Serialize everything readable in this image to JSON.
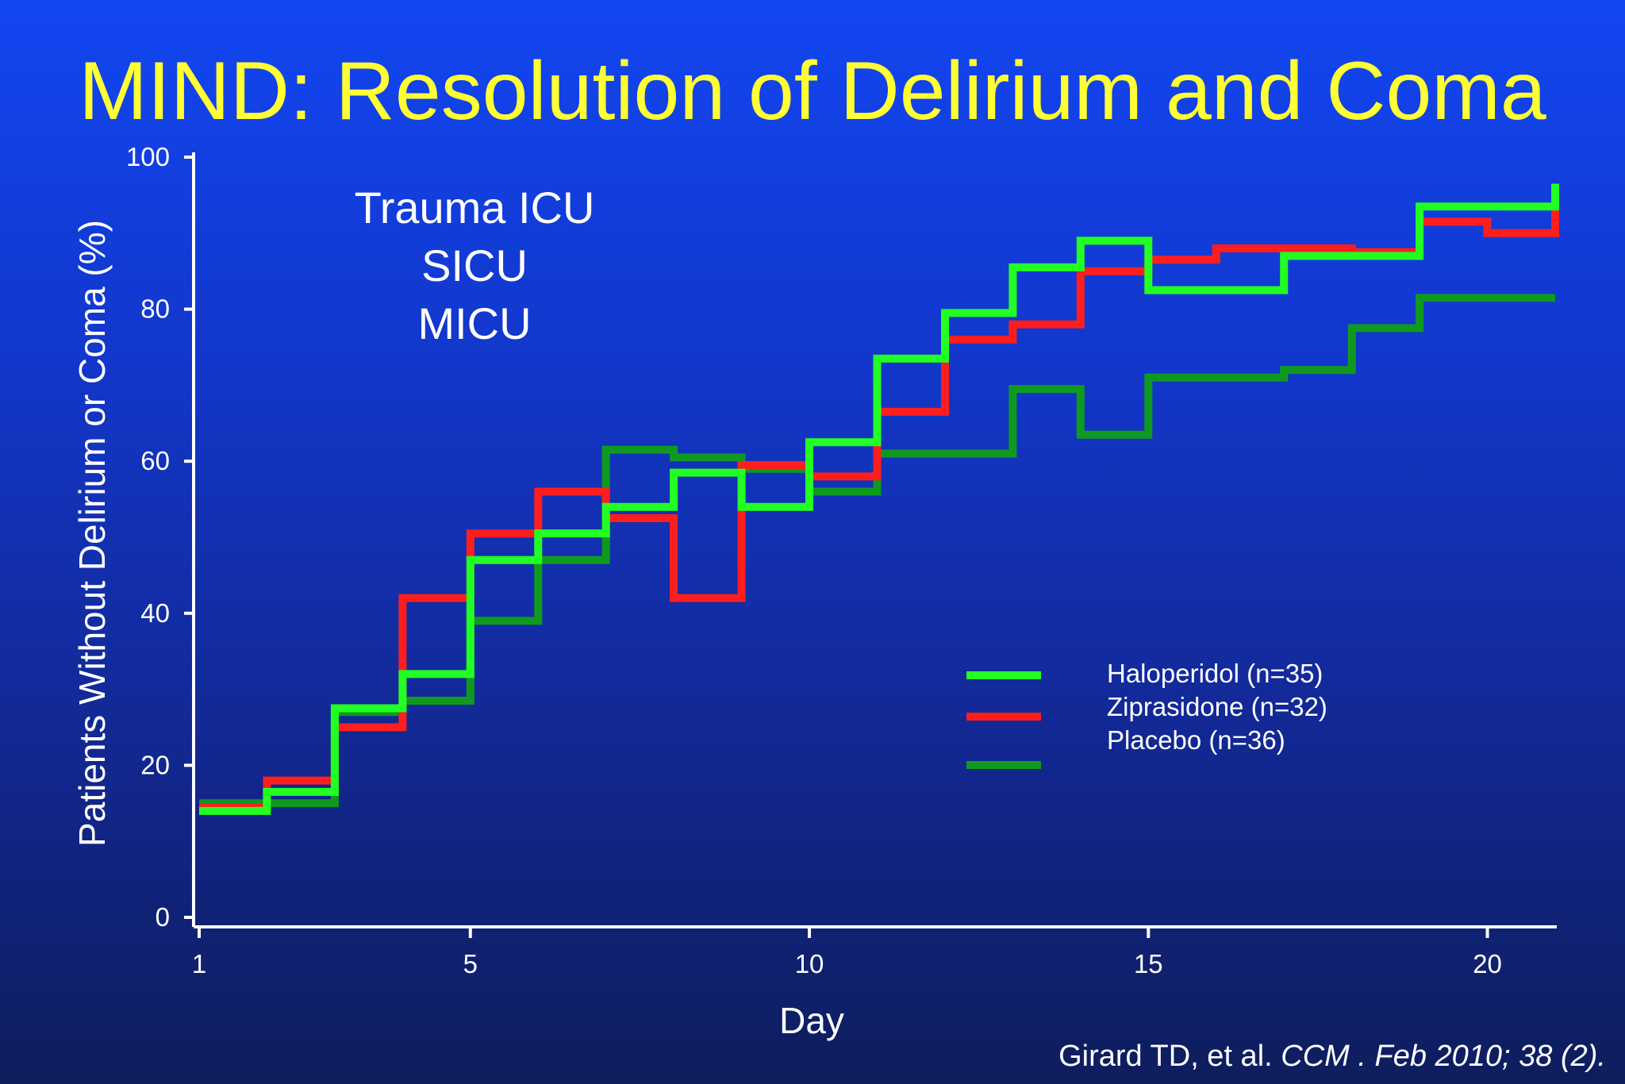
{
  "title": "MIND: Resolution of Delirium and Coma",
  "citation": {
    "authors": "Girard TD, et al. ",
    "journal": "CCM . Feb 2010; 38 (2)."
  },
  "annotation_lines": [
    "Trauma ICU",
    "SICU",
    "MICU"
  ],
  "colors": {
    "background_top": "#1246f2",
    "background_bottom": "#0e1d5c",
    "title": "#ffff33",
    "haloperidol": "#22ff22",
    "ziprasidone": "#ff1e1e",
    "placebo": "#0f9a1f"
  },
  "chart_data": {
    "type": "line",
    "step": true,
    "title": "MIND: Resolution of Delirium and Coma",
    "xlabel": "Day",
    "ylabel": "Patients Without Delirium or Coma (%)",
    "xlim": [
      1,
      21
    ],
    "ylim": [
      0,
      100
    ],
    "x_ticks": [
      1,
      5,
      10,
      15,
      20
    ],
    "y_ticks": [
      0,
      20,
      40,
      60,
      80,
      100
    ],
    "x_tick_labels": [
      "1",
      "5",
      "10",
      "15",
      "20"
    ],
    "y_tick_labels": [
      "0",
      "20",
      "40",
      "60",
      "80",
      "100"
    ],
    "grid": false,
    "legend_position": "center-right",
    "series": [
      {
        "name": "Haloperidol (n=35)",
        "color": "#22ff22",
        "points": [
          [
            1,
            14
          ],
          [
            2,
            14
          ],
          [
            2,
            16.5
          ],
          [
            3,
            16.5
          ],
          [
            3,
            27.5
          ],
          [
            4,
            27.5
          ],
          [
            4,
            32
          ],
          [
            5,
            32
          ],
          [
            5,
            47
          ],
          [
            6,
            47
          ],
          [
            6,
            50.5
          ],
          [
            7,
            50.5
          ],
          [
            7,
            54
          ],
          [
            8,
            54
          ],
          [
            8,
            58.5
          ],
          [
            9,
            58.5
          ],
          [
            9,
            54
          ],
          [
            10,
            54
          ],
          [
            10,
            62.5
          ],
          [
            11,
            62.5
          ],
          [
            11,
            73.5
          ],
          [
            12,
            73.5
          ],
          [
            12,
            79.5
          ],
          [
            13,
            79.5
          ],
          [
            13,
            85.5
          ],
          [
            14,
            85.5
          ],
          [
            14,
            89
          ],
          [
            15,
            89
          ],
          [
            15,
            82.5
          ],
          [
            17,
            82.5
          ],
          [
            17,
            87
          ],
          [
            19,
            87
          ],
          [
            19,
            93.5
          ],
          [
            21,
            93.5
          ],
          [
            21,
            96.5
          ]
        ]
      },
      {
        "name": "Ziprasidone (n=32)",
        "color": "#ff1e1e",
        "points": [
          [
            1,
            14.5
          ],
          [
            2,
            14.5
          ],
          [
            2,
            18
          ],
          [
            3,
            18
          ],
          [
            3,
            25
          ],
          [
            4,
            25
          ],
          [
            4,
            42
          ],
          [
            5,
            42
          ],
          [
            5,
            50.5
          ],
          [
            6,
            50.5
          ],
          [
            6,
            56
          ],
          [
            7,
            56
          ],
          [
            7,
            52.5
          ],
          [
            8,
            52.5
          ],
          [
            8,
            42
          ],
          [
            9,
            42
          ],
          [
            9,
            59.5
          ],
          [
            10,
            59.5
          ],
          [
            10,
            58
          ],
          [
            11,
            58
          ],
          [
            11,
            66.5
          ],
          [
            12,
            66.5
          ],
          [
            12,
            76
          ],
          [
            13,
            76
          ],
          [
            13,
            78
          ],
          [
            14,
            78
          ],
          [
            14,
            85
          ],
          [
            15,
            85
          ],
          [
            15,
            86.5
          ],
          [
            16,
            86.5
          ],
          [
            16,
            88
          ],
          [
            18,
            88
          ],
          [
            18,
            87.5
          ],
          [
            19,
            87.5
          ],
          [
            19,
            91.5
          ],
          [
            20,
            91.5
          ],
          [
            20,
            90
          ],
          [
            21,
            90
          ],
          [
            21,
            93.5
          ]
        ]
      },
      {
        "name": "Placebo (n=36)",
        "color": "#0f9a1f",
        "points": [
          [
            1,
            15
          ],
          [
            2,
            15
          ],
          [
            2,
            15
          ],
          [
            3,
            15
          ],
          [
            3,
            27
          ],
          [
            4,
            27
          ],
          [
            4,
            28.5
          ],
          [
            5,
            28.5
          ],
          [
            5,
            39
          ],
          [
            6,
            39
          ],
          [
            6,
            47
          ],
          [
            7,
            47
          ],
          [
            7,
            61.5
          ],
          [
            8,
            61.5
          ],
          [
            8,
            60.5
          ],
          [
            9,
            60.5
          ],
          [
            9,
            59
          ],
          [
            10,
            59
          ],
          [
            10,
            56
          ],
          [
            11,
            56
          ],
          [
            11,
            61
          ],
          [
            13,
            61
          ],
          [
            13,
            69.5
          ],
          [
            14,
            69.5
          ],
          [
            14,
            63.5
          ],
          [
            15,
            63.5
          ],
          [
            15,
            71
          ],
          [
            17,
            71
          ],
          [
            17,
            72
          ],
          [
            18,
            72
          ],
          [
            18,
            77.5
          ],
          [
            19,
            77.5
          ],
          [
            19,
            81.5
          ],
          [
            20,
            81.5
          ],
          [
            20,
            81.5
          ],
          [
            21,
            81.5
          ]
        ]
      }
    ]
  }
}
